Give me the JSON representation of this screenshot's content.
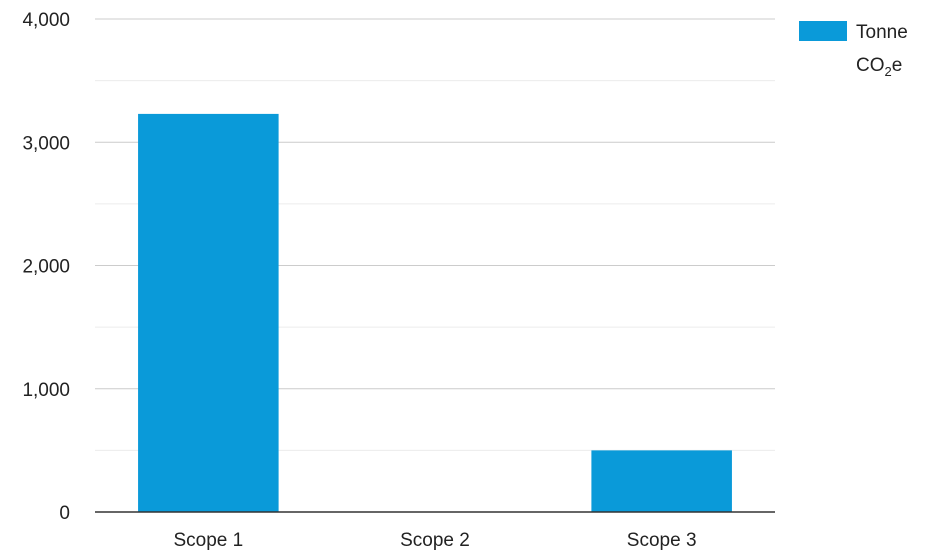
{
  "chart_data": {
    "type": "bar",
    "categories": [
      "Scope 1",
      "Scope 2",
      "Scope 3"
    ],
    "series": [
      {
        "name": "Tonne CO₂e",
        "values": [
          3230,
          0,
          500
        ],
        "color": "#0a9ad9"
      }
    ],
    "yticks": [
      "0",
      "1,000",
      "2,000",
      "3,000",
      "4,000"
    ],
    "ytick_values": [
      0,
      1000,
      2000,
      3000,
      4000
    ],
    "ylim": [
      0,
      4000
    ],
    "grid": true,
    "minor_grid": true,
    "legend_position": "top-right",
    "legend": {
      "line1": "Tonne",
      "line2_prefix": "CO",
      "line2_sub": "2",
      "line2_suffix": "e"
    }
  }
}
